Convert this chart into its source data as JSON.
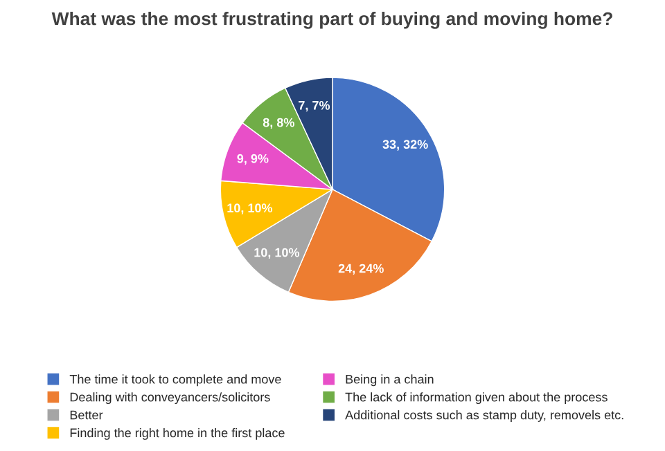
{
  "chart_data": {
    "type": "pie",
    "title": "What was the most frustrating part of buying and moving home?",
    "categories": [
      "The time it took to complete and move",
      "Dealing with conveyancers/solicitors",
      "Better",
      "Finding the right home in the first place",
      "Being in a chain",
      "The lack of information given about the process",
      "Additional costs such as stamp duty, removels etc."
    ],
    "values": [
      33,
      24,
      10,
      10,
      9,
      8,
      7
    ],
    "value_labels": [
      "33, 32%",
      "24, 24%",
      "10, 10%",
      "10, 10%",
      "9, 9%",
      "8, 8%",
      "7, 7%"
    ],
    "colors": [
      "#4472c4",
      "#ed7d31",
      "#a5a5a5",
      "#ffc000",
      "#e84fc8",
      "#70ad47",
      "#264478"
    ],
    "legend": "bottom"
  }
}
